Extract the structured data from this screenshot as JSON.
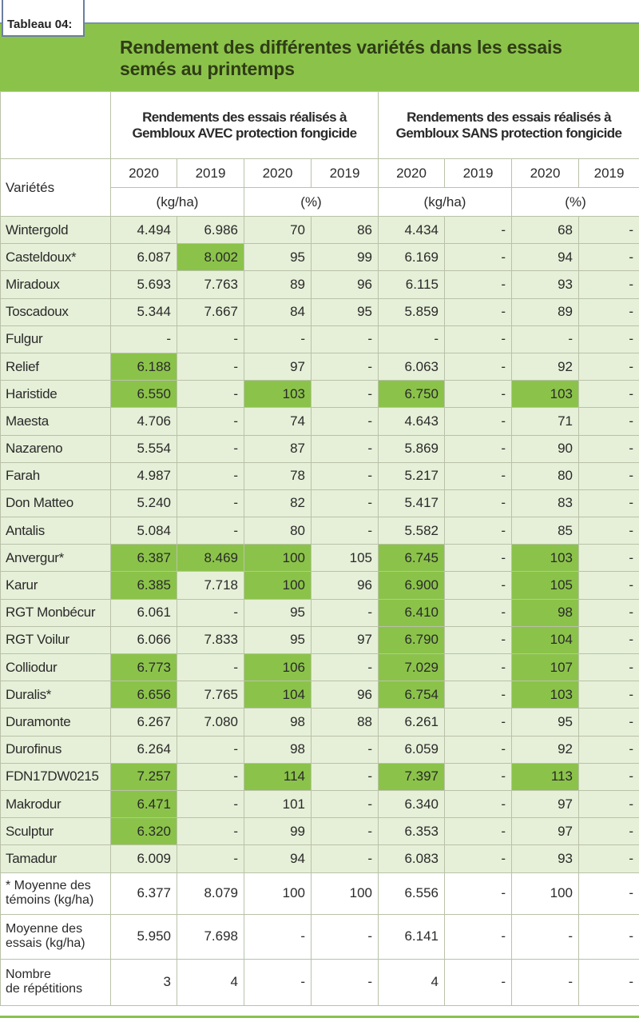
{
  "header": {
    "tag": "Tableau 04:",
    "title": "Rendement des différentes variétés dans les essais\nsemés au printemps"
  },
  "columns": {
    "group_avec": "Rendements des essais réalisés à Gembloux AVEC protection fongicide",
    "group_sans": "Rendements des essais réalisés à Gembloux SANS protection fongicide",
    "varietes_label": "Variétés",
    "years": [
      "2020",
      "2019",
      "2020",
      "2019",
      "2020",
      "2019",
      "2020",
      "2019"
    ],
    "unit_kg": "(kg/ha)",
    "unit_pct": "(%)"
  },
  "rows": [
    {
      "name": "Wintergold",
      "v": [
        "4.494",
        "6.986",
        "70",
        "86",
        "4.434",
        "-",
        "68",
        "-"
      ],
      "hl": []
    },
    {
      "name": "Casteldoux*",
      "v": [
        "6.087",
        "8.002",
        "95",
        "99",
        "6.169",
        "-",
        "94",
        "-"
      ],
      "hl": [
        1
      ]
    },
    {
      "name": "Miradoux",
      "v": [
        "5.693",
        "7.763",
        "89",
        "96",
        "6.115",
        "-",
        "93",
        "-"
      ],
      "hl": []
    },
    {
      "name": "Toscadoux",
      "v": [
        "5.344",
        "7.667",
        "84",
        "95",
        "5.859",
        "-",
        "89",
        "-"
      ],
      "hl": []
    },
    {
      "name": "Fulgur",
      "v": [
        "-",
        "-",
        "-",
        "-",
        "-",
        "-",
        "-",
        "-"
      ],
      "hl": []
    },
    {
      "name": "Relief",
      "v": [
        "6.188",
        "-",
        "97",
        "-",
        "6.063",
        "-",
        "92",
        "-"
      ],
      "hl": [
        0
      ]
    },
    {
      "name": "Haristide",
      "v": [
        "6.550",
        "-",
        "103",
        "-",
        "6.750",
        "-",
        "103",
        "-"
      ],
      "hl": [
        0,
        2,
        4,
        6
      ]
    },
    {
      "name": "Maesta",
      "v": [
        "4.706",
        "-",
        "74",
        "-",
        "4.643",
        "-",
        "71",
        "-"
      ],
      "hl": []
    },
    {
      "name": "Nazareno",
      "v": [
        "5.554",
        "-",
        "87",
        "-",
        "5.869",
        "-",
        "90",
        "-"
      ],
      "hl": []
    },
    {
      "name": "Farah",
      "v": [
        "4.987",
        "-",
        "78",
        "-",
        "5.217",
        "-",
        "80",
        "-"
      ],
      "hl": []
    },
    {
      "name": "Don Matteo",
      "v": [
        "5.240",
        "-",
        "82",
        "-",
        "5.417",
        "-",
        "83",
        "-"
      ],
      "hl": []
    },
    {
      "name": "Antalis",
      "v": [
        "5.084",
        "-",
        "80",
        "-",
        "5.582",
        "-",
        "85",
        "-"
      ],
      "hl": []
    },
    {
      "name": "Anvergur*",
      "v": [
        "6.387",
        "8.469",
        "100",
        "105",
        "6.745",
        "-",
        "103",
        "-"
      ],
      "hl": [
        0,
        1,
        2,
        4,
        6
      ]
    },
    {
      "name": "Karur",
      "v": [
        "6.385",
        "7.718",
        "100",
        "96",
        "6.900",
        "-",
        "105",
        "-"
      ],
      "hl": [
        0,
        2,
        4,
        6
      ]
    },
    {
      "name": "RGT Monbécur",
      "v": [
        "6.061",
        "-",
        "95",
        "-",
        "6.410",
        "-",
        "98",
        "-"
      ],
      "hl": [
        4,
        6
      ]
    },
    {
      "name": "RGT Voilur",
      "v": [
        "6.066",
        "7.833",
        "95",
        "97",
        "6.790",
        "-",
        "104",
        "-"
      ],
      "hl": [
        4,
        6
      ]
    },
    {
      "name": "Colliodur",
      "v": [
        "6.773",
        "-",
        "106",
        "-",
        "7.029",
        "-",
        "107",
        "-"
      ],
      "hl": [
        0,
        2,
        4,
        6
      ]
    },
    {
      "name": "Duralis*",
      "v": [
        "6.656",
        "7.765",
        "104",
        "96",
        "6.754",
        "-",
        "103",
        "-"
      ],
      "hl": [
        0,
        2,
        4,
        6
      ]
    },
    {
      "name": "Duramonte",
      "v": [
        "6.267",
        "7.080",
        "98",
        "88",
        "6.261",
        "-",
        "95",
        "-"
      ],
      "hl": []
    },
    {
      "name": "Durofinus",
      "v": [
        "6.264",
        "-",
        "98",
        "-",
        "6.059",
        "-",
        "92",
        "-"
      ],
      "hl": []
    },
    {
      "name": "FDN17DW0215",
      "v": [
        "7.257",
        "-",
        "114",
        "-",
        "7.397",
        "-",
        "113",
        "-"
      ],
      "hl": [
        0,
        2,
        4,
        6
      ]
    },
    {
      "name": "Makrodur",
      "v": [
        "6.471",
        "-",
        "101",
        "-",
        "6.340",
        "-",
        "97",
        "-"
      ],
      "hl": [
        0
      ]
    },
    {
      "name": "Sculptur",
      "v": [
        "6.320",
        "-",
        "99",
        "-",
        "6.353",
        "-",
        "97",
        "-"
      ],
      "hl": [
        0
      ]
    },
    {
      "name": "Tamadur",
      "v": [
        "6.009",
        "-",
        "94",
        "-",
        "6.083",
        "-",
        "93",
        "-"
      ],
      "hl": []
    }
  ],
  "footer_rows": [
    {
      "name_l1": "* Moyenne des",
      "name_l2": "témoins (kg/ha)",
      "v": [
        "6.377",
        "8.079",
        "100",
        "100",
        "6.556",
        "-",
        "100",
        "-"
      ]
    },
    {
      "name_l1": "Moyenne des",
      "name_l2": "essais  (kg/ha)",
      "v": [
        "5.950",
        "7.698",
        "-",
        "-",
        "6.141",
        "-",
        "-",
        "-"
      ]
    },
    {
      "name_l1": "Nombre",
      "name_l2": "de répétitions",
      "v": [
        "3",
        "4",
        "-",
        "-",
        "4",
        "-",
        "-",
        "-"
      ]
    }
  ],
  "colors": {
    "highlight": "#8bc34a",
    "row_bg": "#e6f0d8",
    "title_bg": "#8bc34a"
  }
}
